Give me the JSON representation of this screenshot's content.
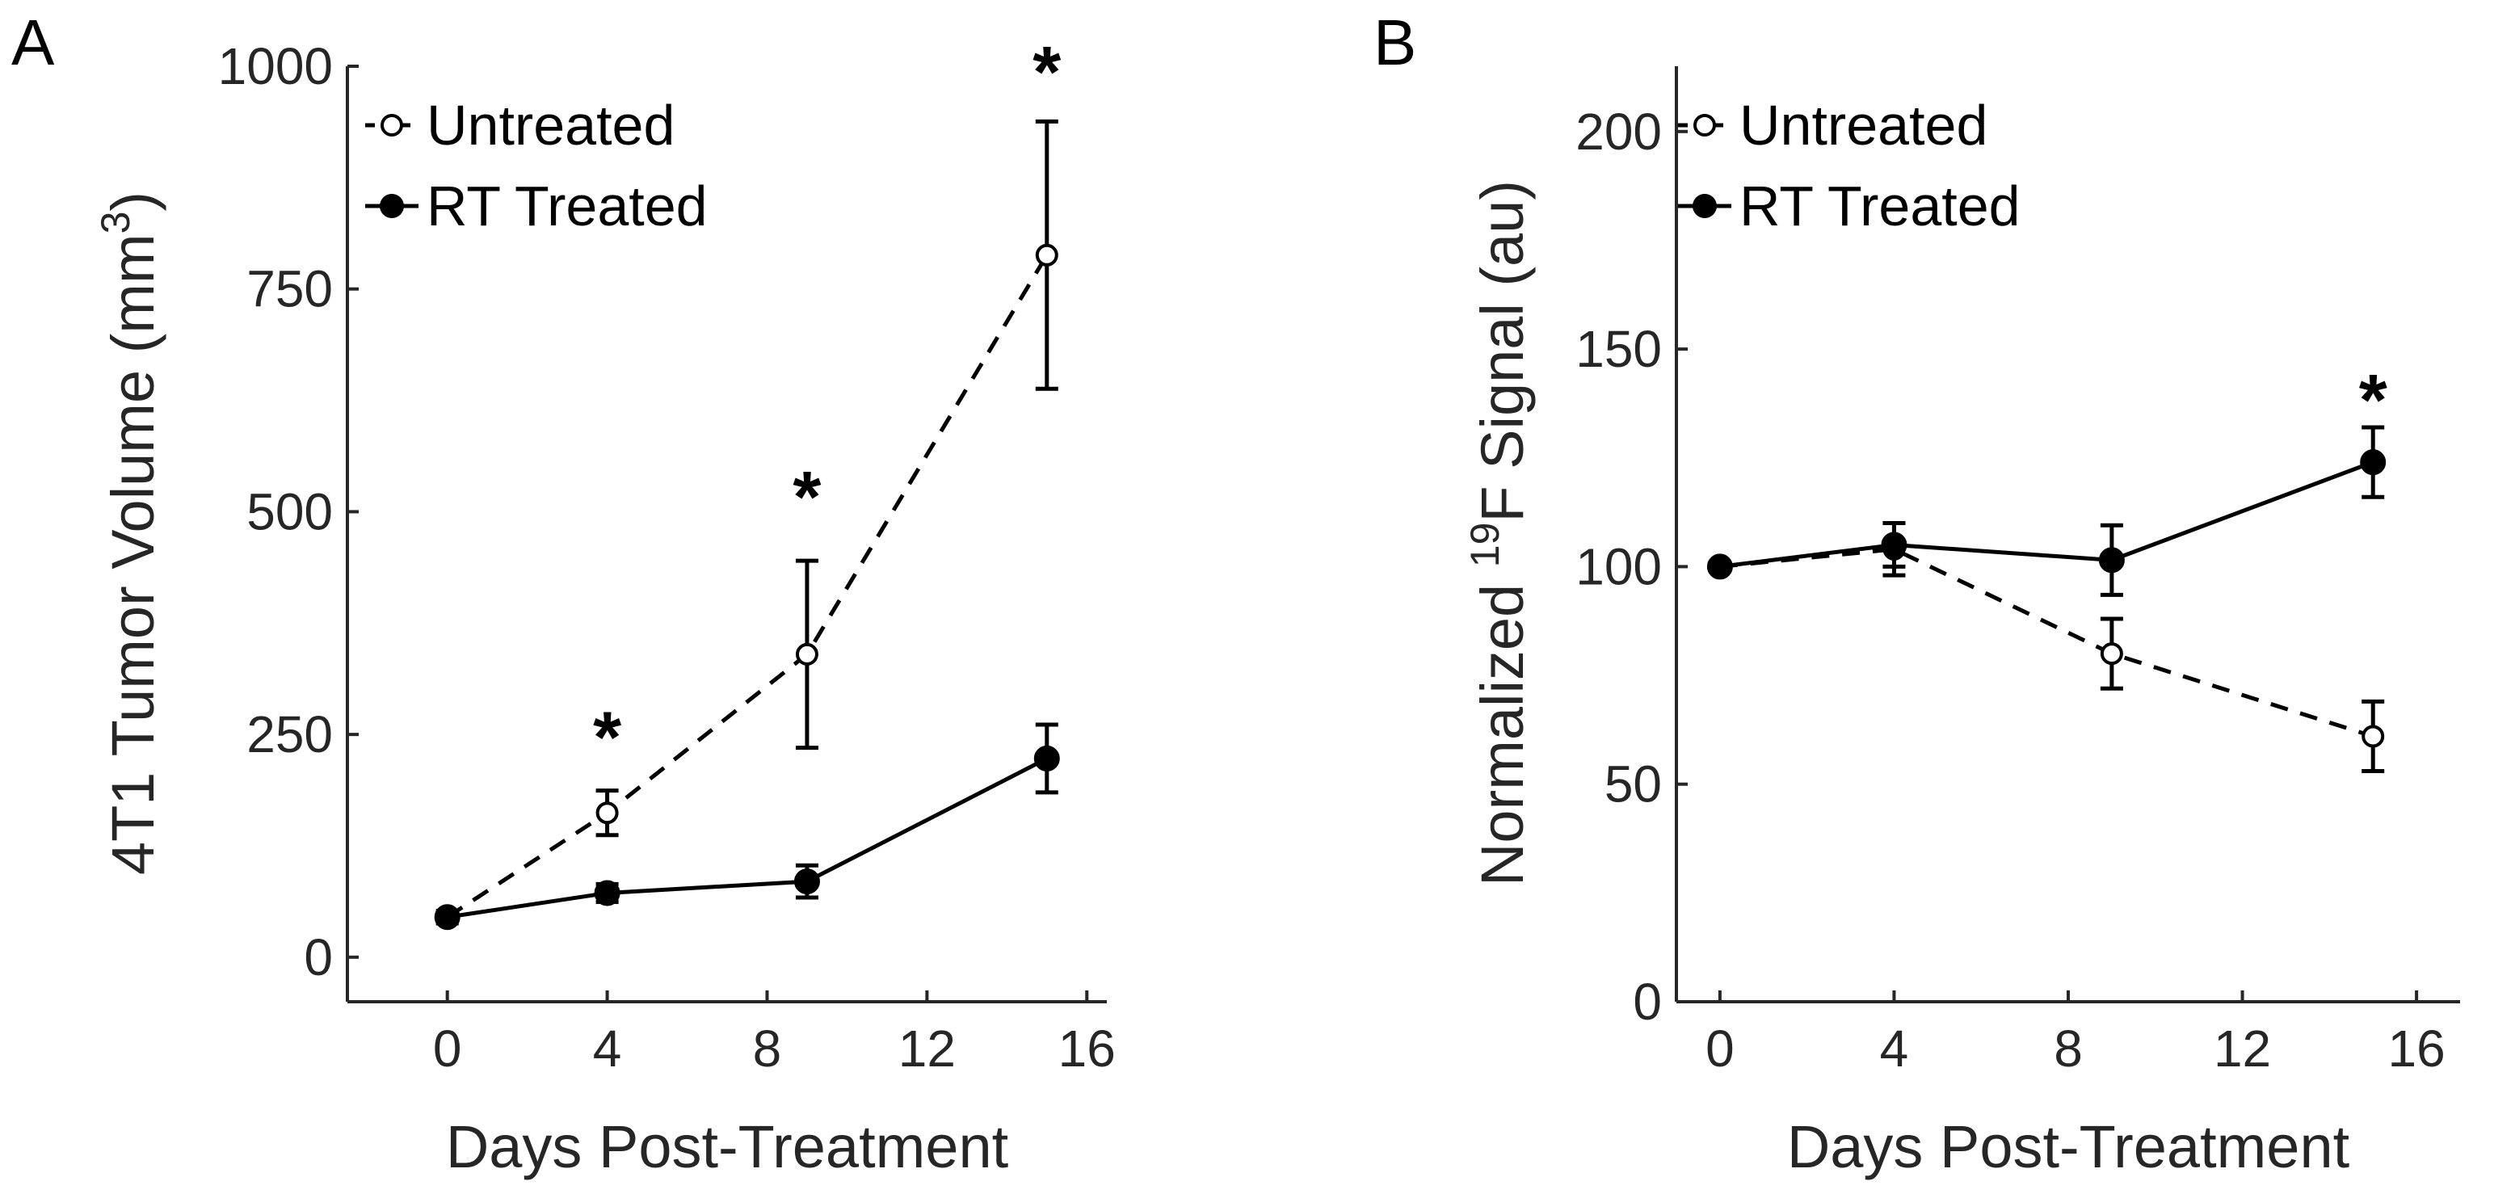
{
  "chart_data": [
    {
      "type": "line",
      "panel": "A",
      "title": "",
      "xlabel": "Days Post-Treatment",
      "ylabel": "4T1 Tumor Volume (mm",
      "ylabel_sup": "3",
      "ylabel_close": ")",
      "xlim": [
        -2.5,
        16.5
      ],
      "ylim": [
        -50,
        1000
      ],
      "xticks": [
        0,
        4,
        8,
        12,
        16
      ],
      "yticks": [
        0,
        250,
        500,
        750,
        1000
      ],
      "grid": false,
      "legend_position": "top-left",
      "x": [
        0,
        4,
        9,
        15
      ],
      "series": [
        {
          "name": "Untreated",
          "style": "dashed",
          "marker": "open-circle",
          "values": [
            45,
            162,
            340,
            788
          ],
          "err": [
            7,
            25,
            105,
            150
          ]
        },
        {
          "name": "RT Treated",
          "style": "solid",
          "marker": "filled-circle",
          "values": [
            45,
            72,
            85,
            223
          ],
          "err": [
            5,
            10,
            18,
            38
          ]
        }
      ],
      "annotations": [
        {
          "text": "*",
          "x": 4,
          "y": 255
        },
        {
          "text": "*",
          "x": 9,
          "y": 525
        },
        {
          "text": "*",
          "x": 15,
          "y": 1002
        }
      ]
    },
    {
      "type": "line",
      "panel": "B",
      "title": "",
      "xlabel": "Days Post-Treatment",
      "ylabel": "Normalized ",
      "ylabel_sup": "19",
      "ylabel_close": "F Signal (au)",
      "xlim": [
        -1,
        17
      ],
      "ylim": [
        0,
        215
      ],
      "xticks": [
        0,
        4,
        8,
        12,
        16
      ],
      "yticks": [
        0,
        50,
        100,
        150,
        200
      ],
      "grid": false,
      "legend_position": "top-left",
      "x": [
        0,
        4,
        9,
        15
      ],
      "series": [
        {
          "name": "Untreated",
          "style": "dashed",
          "marker": "open-circle",
          "values": [
            100,
            104,
            80,
            61
          ],
          "err": [
            1,
            6,
            8,
            8
          ]
        },
        {
          "name": "RT Treated",
          "style": "solid",
          "marker": "filled-circle",
          "values": [
            100,
            105,
            101.5,
            124
          ],
          "err": [
            1,
            5,
            8,
            8
          ]
        }
      ],
      "annotations": [
        {
          "text": "*",
          "x": 15,
          "y": 140
        }
      ]
    }
  ]
}
